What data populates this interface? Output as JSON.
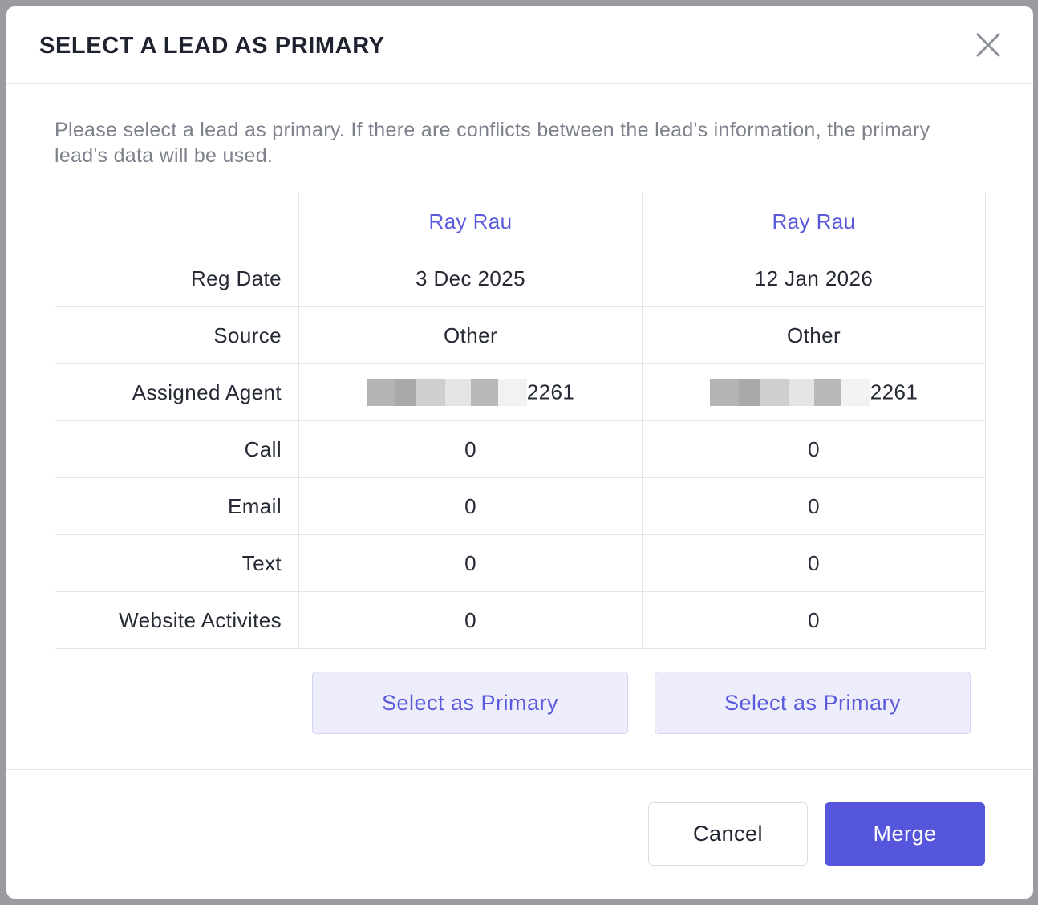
{
  "modal": {
    "title": "SELECT A LEAD AS PRIMARY",
    "description": "Please select a lead as primary. If there are conflicts between the lead's information, the primary lead's data will be used."
  },
  "leads": [
    {
      "name": "Ray Rau",
      "reg_date": "3 Dec 2025",
      "source": "Other",
      "assigned_agent_visible": "2261",
      "call": "0",
      "email": "0",
      "text": "0",
      "website_activities": "0"
    },
    {
      "name": "Ray Rau",
      "reg_date": "12 Jan 2026",
      "source": "Other",
      "assigned_agent_visible": "2261",
      "call": "0",
      "email": "0",
      "text": "0",
      "website_activities": "0"
    }
  ],
  "row_labels": {
    "reg_date": "Reg Date",
    "source": "Source",
    "assigned_agent": "Assigned Agent",
    "call": "Call",
    "email": "Email",
    "text": "Text",
    "website_activities": "Website Activites"
  },
  "buttons": {
    "select_primary": "Select as Primary",
    "cancel": "Cancel",
    "merge": "Merge"
  },
  "colors": {
    "accent": "#5656dc",
    "lead_name": "#5a5bdb",
    "select_button_bg": "#ededfc"
  },
  "icons": {
    "close": "close-icon"
  }
}
